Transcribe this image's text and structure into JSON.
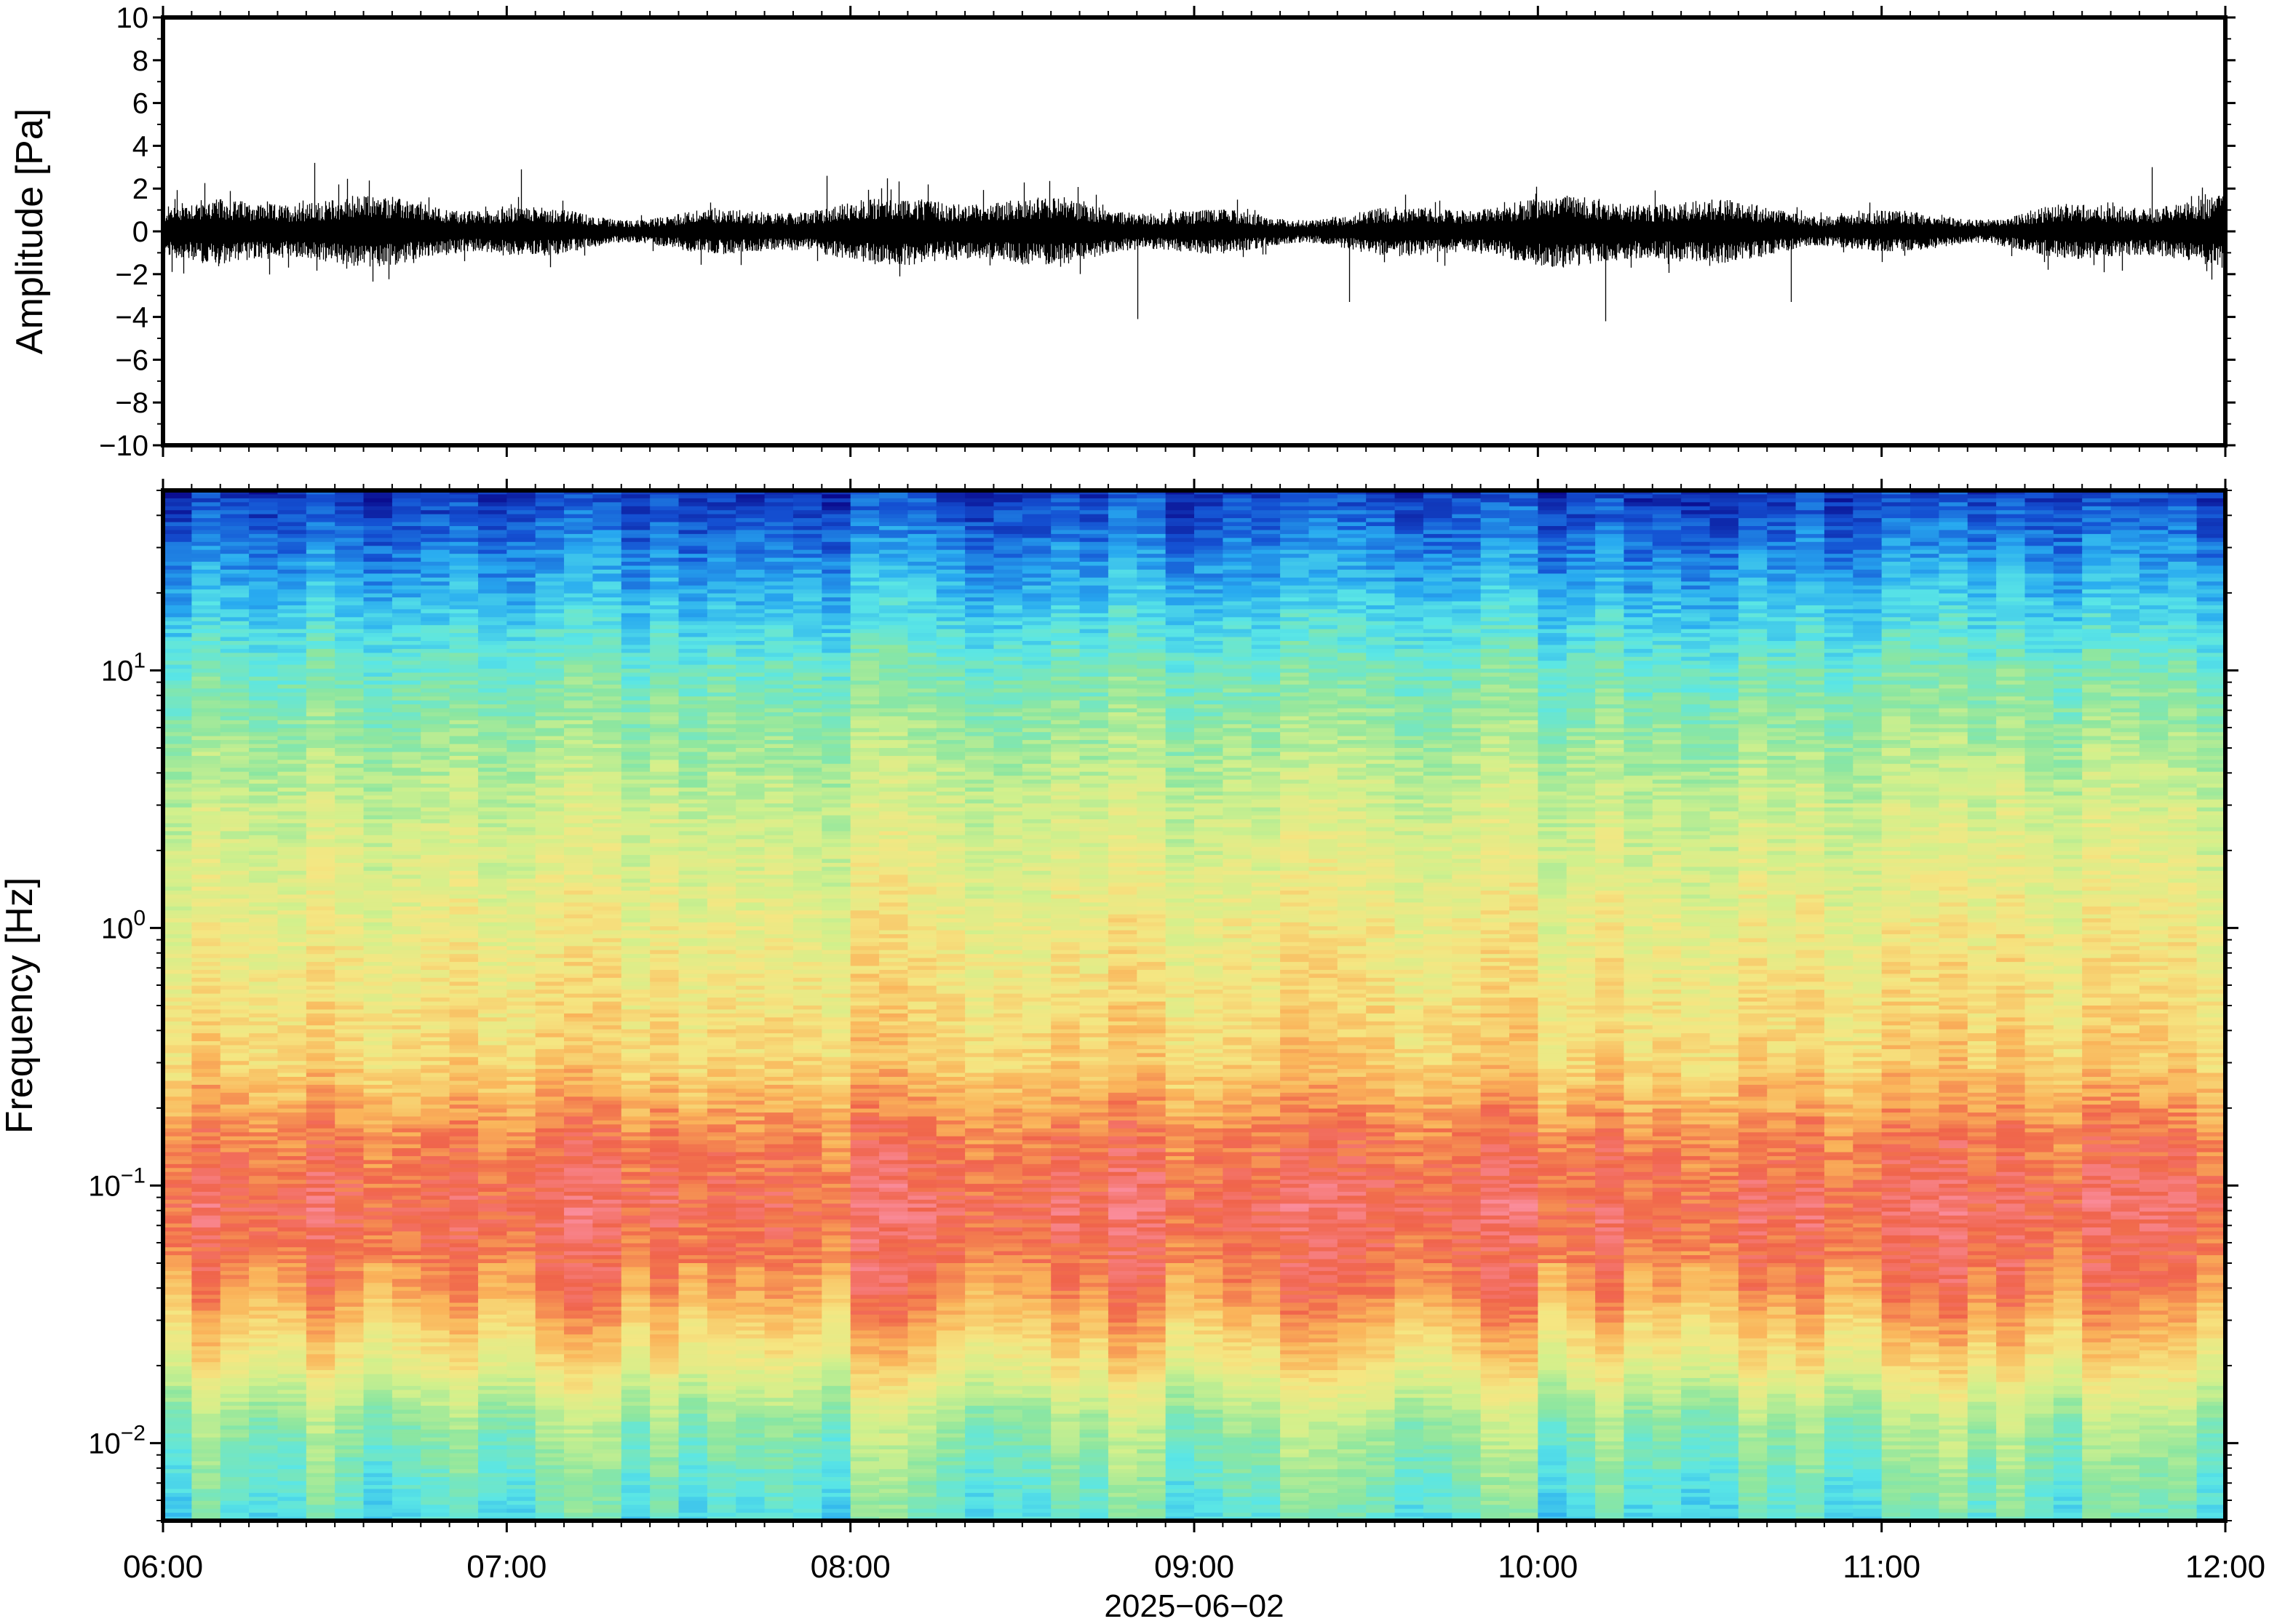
{
  "chart_data": [
    {
      "type": "line",
      "ylabel": "Amplitude [Pa]",
      "ylim": [
        -10,
        10
      ],
      "yticks": [
        -10,
        -8,
        -6,
        -4,
        -2,
        0,
        2,
        4,
        6,
        8,
        10
      ],
      "ytick_labels": [
        "−10",
        "−8",
        "−6",
        "−4",
        "−2",
        "0",
        "2",
        "4",
        "6",
        "8",
        "10"
      ],
      "xlim": [
        "06:00",
        "12:00"
      ],
      "series": [
        {
          "color": "#000000",
          "typical_range": [
            -1.5,
            1.5
          ],
          "peak_values": [
            3.2,
            2.9,
            2.6,
            -4.1,
            -3.3,
            -4.2,
            -3.3,
            3.0
          ]
        }
      ]
    },
    {
      "type": "heatmap",
      "ylabel": "Frequency [Hz]",
      "yscale": "log",
      "ylim": [
        0.005,
        50
      ],
      "yticks": [
        0.01,
        0.1,
        1,
        10
      ],
      "ytick_labels": [
        {
          "base": "10",
          "exp": "−2"
        },
        {
          "base": "10",
          "exp": "−1"
        },
        {
          "base": "10",
          "exp": "0"
        },
        {
          "base": "10",
          "exp": "1"
        }
      ],
      "xlabel": "2025−06−02",
      "xticks": [
        "06:00",
        "07:00",
        "08:00",
        "09:00",
        "10:00",
        "11:00",
        "12:00"
      ],
      "xlim": [
        "06:00",
        "12:00"
      ],
      "colormap": [
        "#0a0a8c",
        "#1450d2",
        "#28aaf0",
        "#5ae6e6",
        "#8ce6a0",
        "#d2f08c",
        "#f5e682",
        "#fab45a",
        "#f0644b",
        "#fa8c9b"
      ],
      "time_columns": 72,
      "frequency_level_profile": [
        {
          "freq": 0.005,
          "level": 0.36
        },
        {
          "freq": 0.012,
          "level": 0.48
        },
        {
          "freq": 0.02,
          "level": 0.66
        },
        {
          "freq": 0.04,
          "level": 0.84
        },
        {
          "freq": 0.08,
          "level": 0.92
        },
        {
          "freq": 0.15,
          "level": 0.86
        },
        {
          "freq": 0.3,
          "level": 0.72
        },
        {
          "freq": 1,
          "level": 0.64
        },
        {
          "freq": 3,
          "level": 0.56
        },
        {
          "freq": 10,
          "level": 0.4
        },
        {
          "freq": 20,
          "level": 0.26
        },
        {
          "freq": 50,
          "level": 0.08
        }
      ]
    }
  ]
}
